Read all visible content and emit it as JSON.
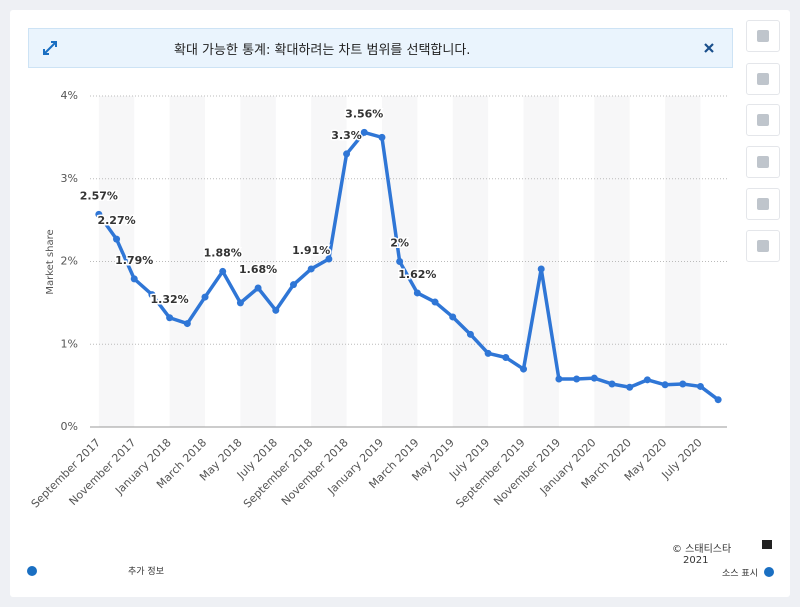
{
  "banner": {
    "text": "확대 가능한 통계: 확대하려는 차트 범위를 선택합니다."
  },
  "chart_data": {
    "type": "line",
    "y_label": "Market share",
    "categories": [
      "September 2017",
      null,
      "November 2017",
      null,
      "January 2018",
      null,
      "March 2018",
      null,
      "May 2018",
      null,
      "July 2018",
      null,
      "September 2018",
      null,
      "November 2018",
      null,
      "January 2019",
      null,
      "March 2019",
      null,
      "May 2019",
      null,
      "July 2019",
      null,
      "September 2019",
      null,
      "November 2019",
      null,
      "January 2020",
      null,
      "March 2020",
      null,
      "May 2020",
      null,
      "July 2020",
      null
    ],
    "series": [
      {
        "name": "Market share",
        "color": "#2f76d6",
        "values": [
          2.57,
          2.27,
          1.79,
          1.6,
          1.32,
          1.25,
          1.57,
          1.88,
          1.5,
          1.68,
          1.41,
          1.72,
          1.91,
          2.03,
          3.3,
          3.56,
          3.5,
          2,
          1.62,
          1.51,
          1.33,
          1.12,
          0.89,
          0.84,
          0.7,
          1.91,
          0.58,
          0.58,
          0.59,
          0.52,
          0.48,
          0.57,
          0.51,
          0.52,
          0.49,
          0.33
        ],
        "value_labels": [
          "2.57%",
          "2.27%",
          "1.79%",
          null,
          "1.32%",
          null,
          null,
          "1.88%",
          null,
          "1.68%",
          null,
          null,
          "1.91%",
          null,
          "3.3%",
          "3.56%",
          null,
          "2%",
          "1.62%",
          null,
          null,
          null,
          null,
          null,
          null,
          null,
          null,
          null,
          null,
          null,
          null,
          null,
          null,
          null,
          null,
          null
        ]
      }
    ],
    "ylim": [
      0,
      4
    ],
    "yticks": [
      {
        "value": 0,
        "label": "0%"
      },
      {
        "value": 1,
        "label": "1%"
      },
      {
        "value": 2,
        "label": "2%"
      },
      {
        "value": 3,
        "label": "3%"
      },
      {
        "value": 4,
        "label": "4%"
      }
    ],
    "grid": true
  },
  "footer": {
    "copyright": "© 스태티스타",
    "year": "2021",
    "more_info": "추가 정보",
    "source": "소스 표시"
  }
}
